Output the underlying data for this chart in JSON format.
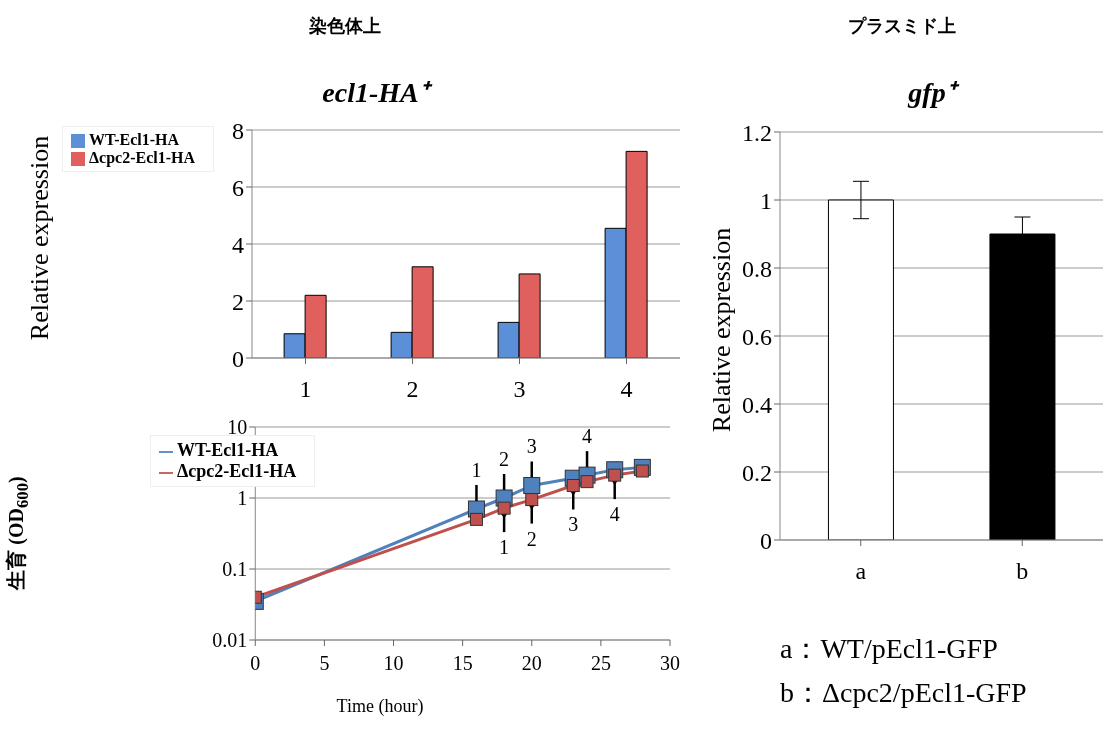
{
  "chart_data": [
    {
      "type": "bar",
      "title": "染色体上",
      "subtitle": "ecl1-HA⁺",
      "ylabel": "Relative expression",
      "categories": [
        "1",
        "2",
        "3",
        "4"
      ],
      "series": [
        {
          "name": "WT-Ecl1-HA",
          "color": "#5b8fd8",
          "values": [
            0.85,
            0.9,
            1.25,
            4.55
          ]
        },
        {
          "name": "Δcpc2-Ecl1-HA",
          "color": "#e0605e",
          "values": [
            2.2,
            3.2,
            2.95,
            7.25
          ]
        }
      ],
      "ylim": [
        0,
        8
      ],
      "yticks": [
        0,
        2,
        4,
        6,
        8
      ],
      "grid": "y",
      "legend": "top left"
    },
    {
      "type": "line",
      "xlabel": "Time (hour)",
      "ylabel": "生育 (OD$_{600}$)",
      "log": "y",
      "marker": "square",
      "series": [
        {
          "name": "WT-Ecl1-HA",
          "color": "#4f81bd",
          "x": [
            0,
            16,
            18,
            20,
            23,
            24,
            26,
            28
          ],
          "values": [
            0.035,
            0.7,
            1.0,
            1.5,
            1.9,
            2.1,
            2.5,
            2.7
          ]
        },
        {
          "name": "Δcpc2-Ecl1-HA",
          "color": "#c0504d",
          "x": [
            0,
            16,
            18,
            20,
            23,
            24,
            26,
            28
          ],
          "values": [
            0.04,
            0.5,
            0.72,
            0.95,
            1.5,
            1.7,
            2.1,
            2.4
          ]
        }
      ],
      "xlim": [
        0,
        30
      ],
      "xticks": [
        0,
        5,
        10,
        15,
        20,
        25,
        30
      ],
      "ylim": [
        0.01,
        10
      ],
      "yticks": [
        0.01,
        0.1,
        1,
        10
      ],
      "grid": "y",
      "legend": "top left",
      "annotations": [
        {
          "text": "1",
          "x": 16,
          "y": 0.7
        },
        {
          "text": "2",
          "x": 18,
          "y": 1.0
        },
        {
          "text": "3",
          "x": 20,
          "y": 1.5
        },
        {
          "text": "4",
          "x": 24,
          "y": 2.1
        },
        {
          "text": "1",
          "x": 18,
          "y": 0.72
        },
        {
          "text": "2",
          "x": 20,
          "y": 0.95
        },
        {
          "text": "3",
          "x": 23,
          "y": 1.5
        },
        {
          "text": "4",
          "x": 26,
          "y": 2.1
        }
      ]
    },
    {
      "type": "bar",
      "title": "プラスミド上",
      "subtitle": "gfp⁺",
      "ylabel": "Relative expression",
      "categories": [
        "a",
        "b"
      ],
      "values": [
        1.0,
        0.9
      ],
      "colors": [
        "#ffffff",
        "#000000"
      ],
      "errors": [
        0.055,
        0.05
      ],
      "ylim": [
        0,
        1.2
      ],
      "yticks": [
        0,
        0.2,
        0.4,
        0.6,
        0.8,
        1,
        1.2
      ],
      "grid": "y",
      "annotations": [
        "a：WT/pEcl1-GFP",
        "b：Δcpc2/pEcl1-GFP"
      ]
    }
  ]
}
